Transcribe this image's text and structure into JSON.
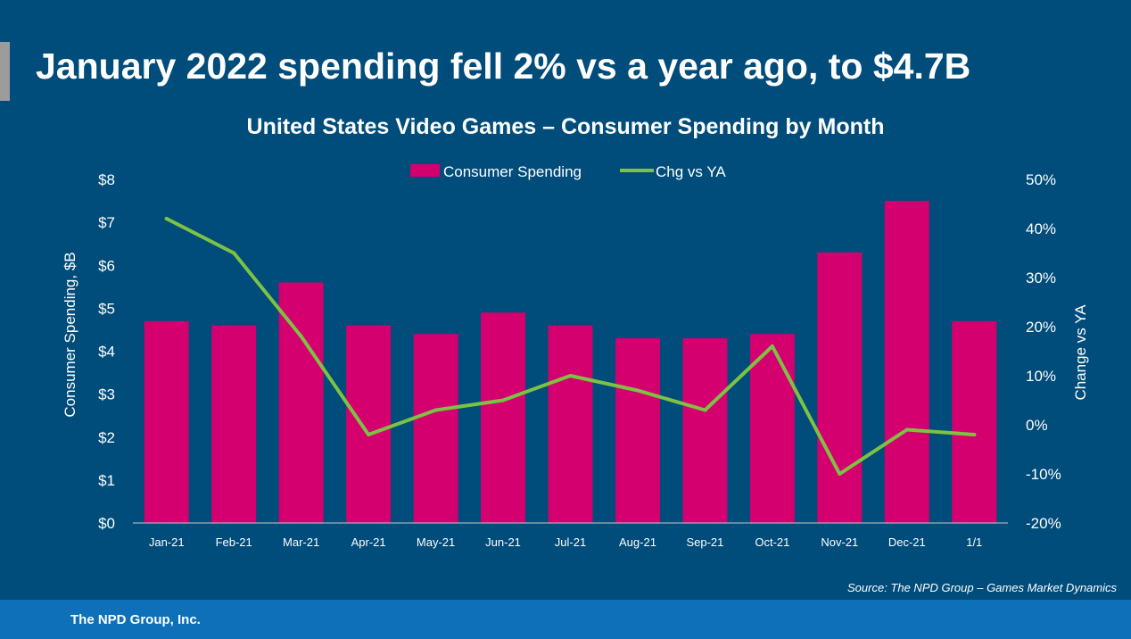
{
  "headline": "January 2022 spending fell 2% vs a year ago, to $4.7B",
  "source": "Source: The NPD Group – Games Market Dynamics",
  "footer": "The NPD Group, Inc.",
  "colors": {
    "background": "#004c7a",
    "bar": "#d4006f",
    "line": "#7dc242",
    "footer": "#0d70b8",
    "accent": "#9c9c9c"
  },
  "chart_data": {
    "type": "bar",
    "title": "United States Video Games – Consumer Spending by Month",
    "categories": [
      "Jan-21",
      "Feb-21",
      "Mar-21",
      "Apr-21",
      "May-21",
      "Jun-21",
      "Jul-21",
      "Aug-21",
      "Sep-21",
      "Oct-21",
      "Nov-21",
      "Dec-21",
      "1/1"
    ],
    "series": [
      {
        "name": "Consumer Spending",
        "type": "bar",
        "axis": "left",
        "values": [
          4.7,
          4.6,
          5.6,
          4.6,
          4.4,
          4.9,
          4.6,
          4.3,
          4.3,
          4.4,
          6.3,
          7.5,
          4.7
        ]
      },
      {
        "name": "Chg vs YA",
        "type": "line",
        "axis": "right",
        "values": [
          42,
          35,
          18,
          -2,
          3,
          5,
          10,
          7,
          3,
          16,
          -10,
          -1,
          -2
        ]
      }
    ],
    "ylabel": "Consumer Spending, $B",
    "ylim": [
      0,
      8
    ],
    "yticks": [
      "$0",
      "$1",
      "$2",
      "$3",
      "$4",
      "$5",
      "$6",
      "$7",
      "$8"
    ],
    "y2label": "Change vs YA",
    "y2lim": [
      -20,
      50
    ],
    "y2ticks": [
      "-20%",
      "-10%",
      "0%",
      "10%",
      "20%",
      "30%",
      "40%",
      "50%"
    ],
    "legend": "top-center",
    "grid": false
  }
}
